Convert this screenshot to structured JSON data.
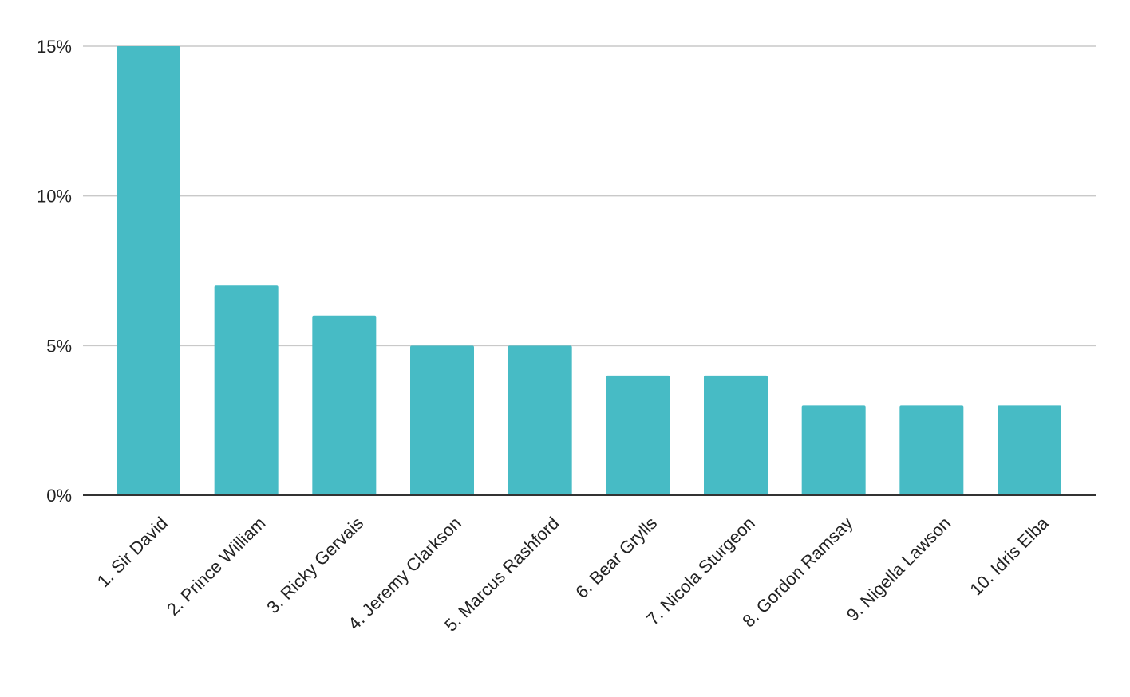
{
  "chart_data": {
    "type": "bar",
    "title": "",
    "xlabel": "",
    "ylabel": "",
    "categories": [
      "1. Sir David",
      "2. Prince William",
      "3. Ricky Gervais",
      "4. Jeremy Clarkson",
      "5. Marcus Rashford",
      "6. Bear Grylls",
      "7. Nicola Sturgeon",
      "8. Gordon Ramsay",
      "9. Nigella Lawson",
      "10. Idris Elba"
    ],
    "values": [
      15,
      7,
      6,
      5,
      5,
      4,
      4,
      3,
      3,
      3
    ],
    "ylim": [
      0,
      15
    ],
    "yticks": [
      0,
      5,
      10,
      15
    ],
    "ytick_labels": [
      "0%",
      "5%",
      "10%",
      "15%"
    ],
    "grid": true,
    "legend": "none",
    "bar_color": "#47bbc5"
  }
}
